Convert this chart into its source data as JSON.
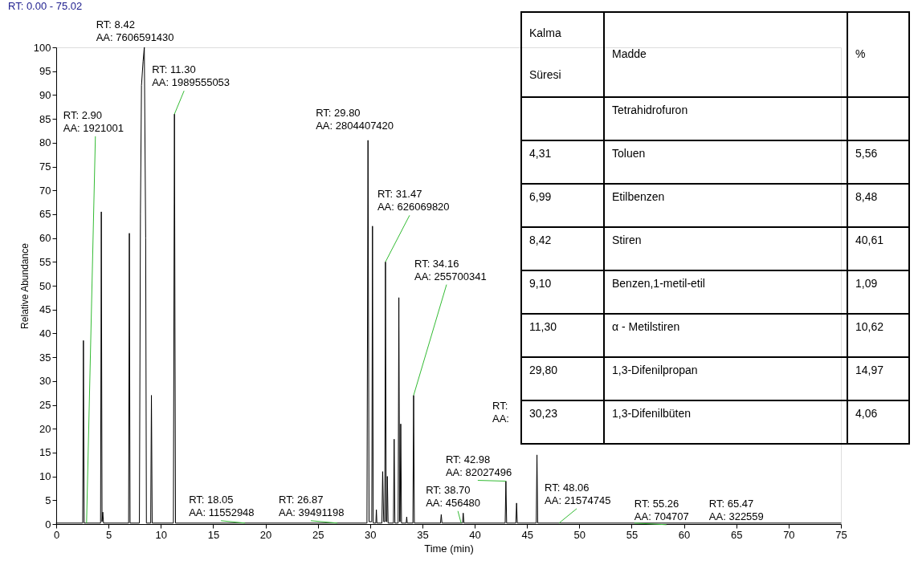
{
  "chart_data": [
    {
      "type": "line",
      "title": "RT: 0.00 - 75.02",
      "xlabel": "Time (min)",
      "ylabel": "Relative Abundance",
      "xlim": [
        0,
        75
      ],
      "ylim": [
        0,
        100
      ],
      "xticks": [
        0,
        5,
        10,
        15,
        20,
        25,
        30,
        35,
        40,
        45,
        50,
        55,
        60,
        65,
        70,
        75
      ],
      "yticks": [
        0,
        5,
        10,
        15,
        20,
        25,
        30,
        35,
        40,
        45,
        50,
        55,
        60,
        65,
        70,
        75,
        80,
        85,
        90,
        95,
        100
      ],
      "series": [
        {
          "color": "#000000",
          "x": [
            0,
            2.5,
            2.53,
            2.6,
            2.67,
            4.24,
            4.31,
            4.38,
            4.45,
            4.52,
            6.92,
            6.99,
            7.06,
            7.95,
            8.05,
            8.15,
            8.3,
            8.42,
            8.55,
            8.62,
            9.03,
            9.1,
            9.17,
            11.2,
            11.3,
            11.4,
            29.7,
            29.8,
            29.9,
            30.16,
            30.23,
            30.3,
            30.55,
            30.6,
            30.65,
            31.13,
            31.2,
            31.3,
            31.4,
            31.47,
            31.54,
            31.6,
            31.65,
            31.72,
            32.23,
            32.3,
            32.37,
            32.68,
            32.75,
            32.82,
            32.87,
            32.93,
            33.0,
            33.45,
            33.5,
            33.55,
            34.09,
            34.16,
            34.23,
            36.73,
            36.8,
            36.87,
            38.83,
            38.9,
            38.97,
            42.91,
            42.98,
            43.05,
            43.93,
            44.0,
            44.07,
            45.88,
            45.95,
            46.02,
            75
          ],
          "values": [
            0.2,
            0.2,
            0.2,
            38.5,
            0.2,
            0.2,
            65.5,
            0.5,
            2.5,
            0.2,
            0.2,
            61,
            0.2,
            0.2,
            65,
            92,
            97,
            100,
            60,
            0.2,
            0.2,
            27,
            0.2,
            0.2,
            86,
            0.2,
            0.2,
            80.5,
            0.5,
            0.5,
            62.5,
            0.2,
            0.2,
            3,
            0.2,
            0.2,
            11,
            0.5,
            0.5,
            55,
            0.5,
            0.5,
            10,
            0.2,
            0.2,
            17.8,
            0.2,
            0.2,
            47.5,
            0.5,
            0.5,
            21,
            0.2,
            0.2,
            1.5,
            0.2,
            0.2,
            27,
            0.2,
            0.2,
            2,
            0.2,
            0.2,
            2.3,
            0.2,
            0.2,
            9,
            0.2,
            0.2,
            4.4,
            0.2,
            0.2,
            14.5,
            0.2,
            0.2
          ]
        }
      ],
      "annotations": [
        {
          "text": "RT: 2.90\nAA: 1921001",
          "x": 2.9,
          "y": 0.2
        },
        {
          "text": "RT: 8.42\nAA: 7606591430",
          "x": 8.42,
          "y": 100
        },
        {
          "text": "RT: 11.30\nAA: 1989555053",
          "x": 11.3,
          "y": 86
        },
        {
          "text": "RT: 18.05\nAA: 11552948",
          "x": 18.05,
          "y": 0.2
        },
        {
          "text": "RT: 26.87\nAA: 39491198",
          "x": 26.87,
          "y": 0.2
        },
        {
          "text": "RT: 29.80\nAA: 2804407420",
          "x": 29.8,
          "y": 80.5
        },
        "RT:\nAA:",
        {
          "text": "RT: 31.47\nAA: 626069820",
          "x": 31.47,
          "y": 55
        },
        {
          "text": "RT: 34.16\nAA: 255700341",
          "x": 34.16,
          "y": 27
        },
        {
          "text": "RT: 38.70\nAA: 456480",
          "x": 38.7,
          "y": 0.2
        },
        {
          "text": "RT: 42.98\nAA: 82027496",
          "x": 42.98,
          "y": 9
        },
        {
          "text": "RT: 48.06\nAA: 21574745",
          "x": 48.06,
          "y": 0.2
        },
        {
          "text": "RT: 55.26\nAA: 704707",
          "x": 55.26,
          "y": 0.2
        },
        {
          "text": "RT: 65.47\nAA: 322559",
          "x": 65.47,
          "y": 0.2
        }
      ]
    },
    {
      "type": "other",
      "categories": [
        "Kalma Süresi",
        "Madde",
        "%"
      ],
      "cell_labels": [
        [
          null,
          "Tetrahidrofuron",
          null
        ],
        [
          "4,31",
          "Toluen",
          "5,56"
        ],
        [
          "6,99",
          "Etilbenzen",
          "8,48"
        ],
        [
          "8,42",
          "Stiren",
          "40,61"
        ],
        [
          "9,10",
          "Benzen,1-metil-etil",
          "1,09"
        ],
        [
          "11,30",
          "α - Metilstiren",
          "10,62"
        ],
        [
          "29,80",
          "1,3-Difenilpropan",
          "14,97"
        ],
        [
          "30,23",
          "1,3-Difenilbüten",
          "4,06"
        ]
      ]
    }
  ]
}
